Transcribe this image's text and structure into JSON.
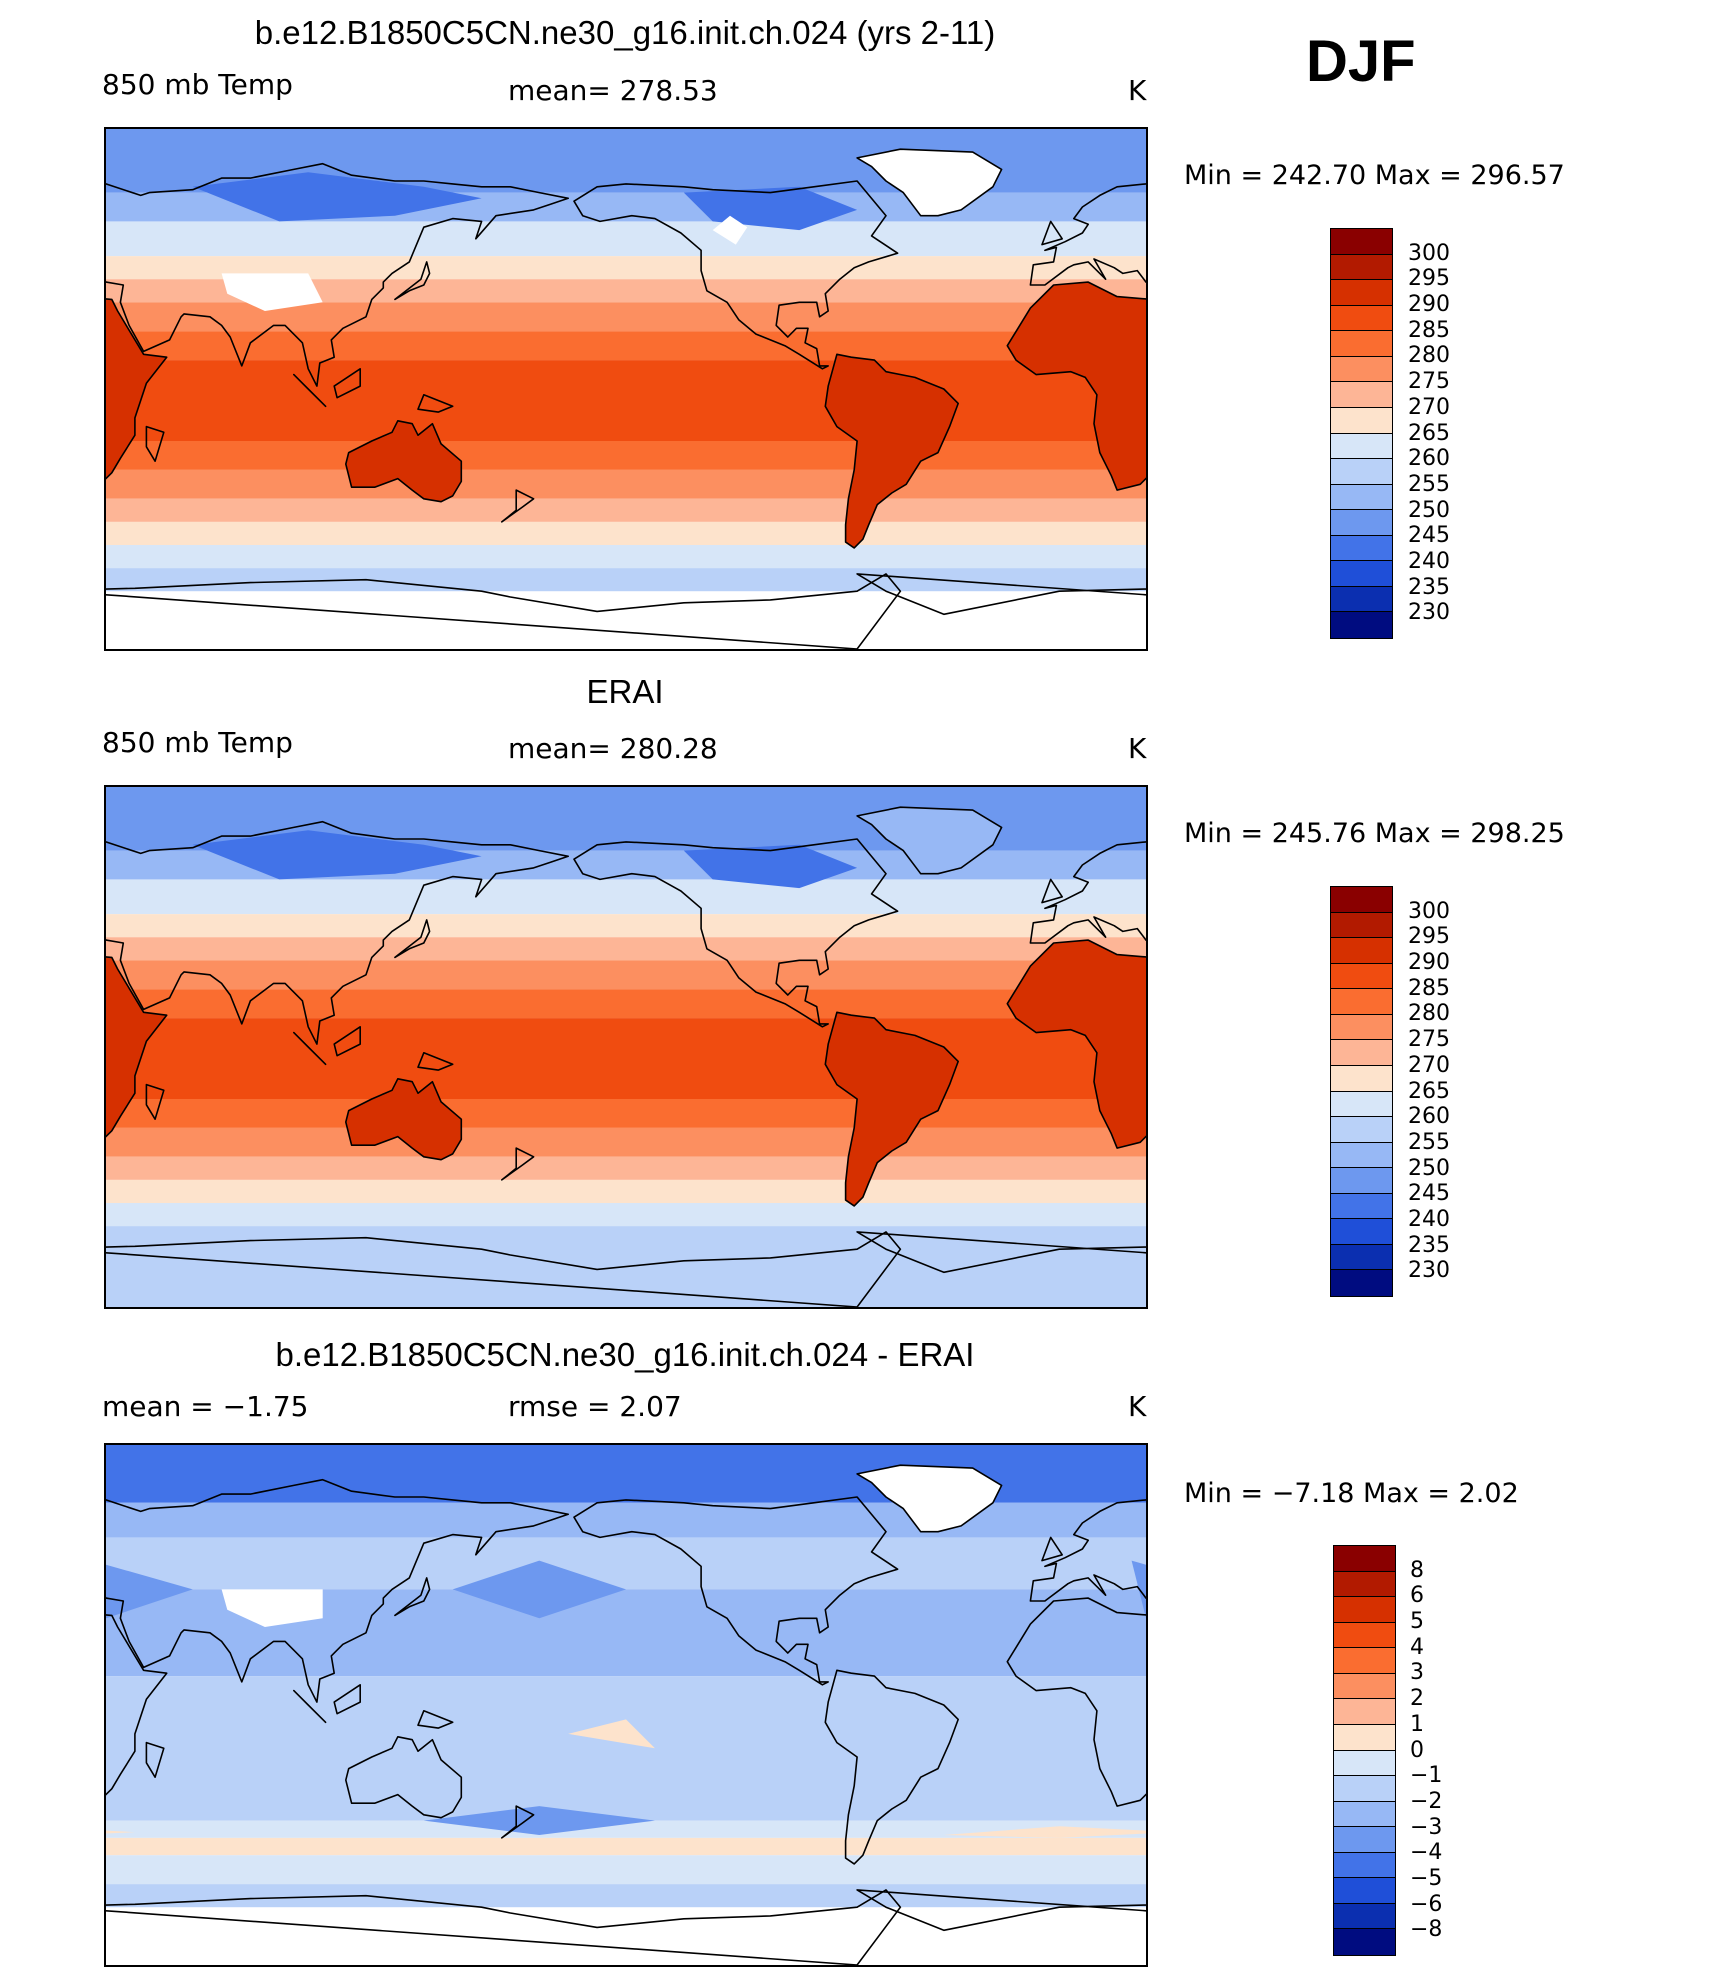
{
  "season": "DJF",
  "panels": [
    {
      "title": "b.e12.B1850C5CN.ne30_g16.init.ch.024 (yrs 2-11)",
      "left_label": "850 mb Temp",
      "center_label": "mean=  278.53",
      "units": "K",
      "minmax": "Min  =  242.70  Max  =  296.57",
      "field": "model",
      "colorbar": {
        "labels": [
          "300",
          "295",
          "290",
          "285",
          "280",
          "275",
          "270",
          "265",
          "260",
          "255",
          "250",
          "245",
          "240",
          "235",
          "230"
        ],
        "colors": [
          "#8a0000",
          "#b21a00",
          "#d63000",
          "#f04c10",
          "#fa6d30",
          "#fc8f60",
          "#fdb596",
          "#fde3cc",
          "#d7e6f8",
          "#b9d1f8",
          "#97b8f5",
          "#6d98ef",
          "#4273e8",
          "#1f4fd8",
          "#0b2fb0",
          "#000c80"
        ]
      }
    },
    {
      "title": "ERAI",
      "left_label": "850 mb Temp",
      "center_label": "mean=  280.28",
      "units": "K",
      "minmax": "Min  =  245.76  Max  =  298.25",
      "field": "obs",
      "colorbar": {
        "labels": [
          "300",
          "295",
          "290",
          "285",
          "280",
          "275",
          "270",
          "265",
          "260",
          "255",
          "250",
          "245",
          "240",
          "235",
          "230"
        ],
        "colors": [
          "#8a0000",
          "#b21a00",
          "#d63000",
          "#f04c10",
          "#fa6d30",
          "#fc8f60",
          "#fdb596",
          "#fde3cc",
          "#d7e6f8",
          "#b9d1f8",
          "#97b8f5",
          "#6d98ef",
          "#4273e8",
          "#1f4fd8",
          "#0b2fb0",
          "#000c80"
        ]
      }
    },
    {
      "title": "b.e12.B1850C5CN.ne30_g16.init.ch.024 - ERAI",
      "left_label": "mean =    −1.75",
      "center_label": "rmse =     2.07",
      "units": "K",
      "minmax": "Min  =    −7.18  Max  =     2.02",
      "field": "diff",
      "colorbar": {
        "labels": [
          "8",
          "6",
          "5",
          "4",
          "3",
          "2",
          "1",
          "0",
          "−1",
          "−2",
          "−3",
          "−4",
          "−5",
          "−6",
          "−8"
        ],
        "colors": [
          "#8a0000",
          "#b21a00",
          "#d63000",
          "#f04c10",
          "#fa6d30",
          "#fc8f60",
          "#fdb596",
          "#fde3cc",
          "#d7e6f8",
          "#b9d1f8",
          "#97b8f5",
          "#6d98ef",
          "#4273e8",
          "#1f4fd8",
          "#0b2fb0",
          "#000c80"
        ]
      }
    }
  ]
}
